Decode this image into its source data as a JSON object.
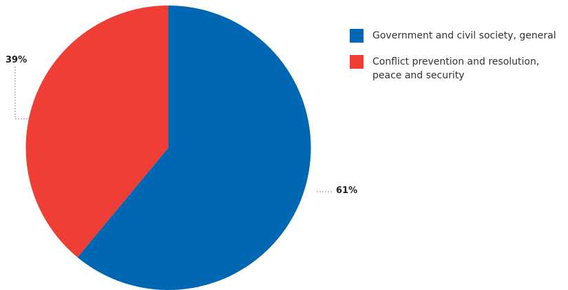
{
  "chart_data": {
    "type": "pie",
    "title": "",
    "slices": [
      {
        "label": "Government and civil society, general",
        "value": 61,
        "display": "61%",
        "color": "#0067b3"
      },
      {
        "label": "Conflict prevention and resolution, peace and security",
        "value": 39,
        "display": "39%",
        "color": "#ef3e36"
      }
    ],
    "legend_position": "right",
    "start_angle": "top",
    "direction": "clockwise"
  }
}
